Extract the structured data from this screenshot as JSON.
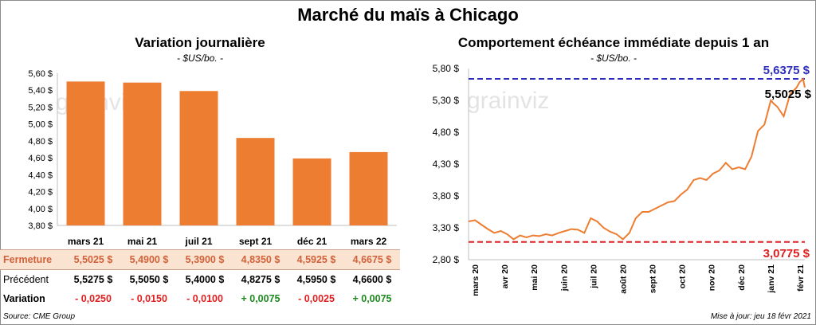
{
  "header": {
    "title": "Marché du maïs à Chicago"
  },
  "left_panel": {
    "title": "Variation  journalière",
    "unit": "- $US/bo. -"
  },
  "right_panel": {
    "title": "Comportement  échéance immédiate depuis 1 an",
    "unit": "- $US/bo. -"
  },
  "watermark": "grainviz",
  "table": {
    "rows": [
      {
        "label": "Fermeture",
        "values": [
          "5,5025  $",
          "5,4900  $",
          "5,3900  $",
          "4,8350  $",
          "4,5925  $",
          "4,6675  $"
        ]
      },
      {
        "label": "Précédent",
        "values": [
          "5,5275  $",
          "5,5050  $",
          "5,4000  $",
          "4,8275  $",
          "4,5950  $",
          "4,6600  $"
        ]
      },
      {
        "label": "Variation",
        "values": [
          "- 0,0250",
          "- 0,0150",
          "- 0,0100",
          "+ 0,0075",
          "- 0,0025",
          "+ 0,0075"
        ]
      }
    ]
  },
  "footer": {
    "source": "Source: CME Group",
    "updated": "Mise à jour: jeu 18 févr 2021"
  },
  "colors": {
    "bar": "#ed7d31",
    "line": "#ed7d31",
    "high": "#2e2ebf",
    "low": "#e02020",
    "negative": "#e02020",
    "positive": "#1e8a1e"
  },
  "chart_data": [
    {
      "type": "bar",
      "title": "Variation  journalière",
      "ylabel": "- $US/bo. -",
      "categories": [
        "mars 21",
        "mai 21",
        "juil 21",
        "sept 21",
        "déc 21",
        "mars 22"
      ],
      "values": [
        5.5025,
        5.49,
        5.39,
        4.835,
        4.5925,
        4.6675
      ],
      "ylim": [
        3.8,
        5.6
      ],
      "yticks": [
        "3,80 $",
        "4,00 $",
        "4,20 $",
        "4,40 $",
        "4,60 $",
        "4,80 $",
        "5,00 $",
        "5,20 $",
        "5,40 $",
        "5,60 $"
      ],
      "grid": false
    },
    {
      "type": "line",
      "title": "Comportement  échéance immédiate depuis 1 an",
      "ylabel": "- $US/bo. -",
      "ylim": [
        2.8,
        5.8
      ],
      "yticks": [
        "2,80 $",
        "3,30 $",
        "3,80 $",
        "4,30 $",
        "4,80 $",
        "5,30 $",
        "5,80 $"
      ],
      "xticks": [
        "mars 20",
        "avr 20",
        "mai 20",
        "juin 20",
        "juil 20",
        "août 20",
        "sept 20",
        "oct 20",
        "nov 20",
        "déc 20",
        "janv 21",
        "févr 21"
      ],
      "x": [
        "2020-02-18",
        "2020-02-25",
        "2020-03-03",
        "2020-03-10",
        "2020-03-17",
        "2020-03-24",
        "2020-03-31",
        "2020-04-07",
        "2020-04-14",
        "2020-04-21",
        "2020-04-28",
        "2020-05-05",
        "2020-05-12",
        "2020-05-19",
        "2020-05-26",
        "2020-06-02",
        "2020-06-09",
        "2020-06-16",
        "2020-06-23",
        "2020-06-30",
        "2020-07-07",
        "2020-07-14",
        "2020-07-21",
        "2020-07-28",
        "2020-08-04",
        "2020-08-11",
        "2020-08-18",
        "2020-08-25",
        "2020-09-01",
        "2020-09-08",
        "2020-09-15",
        "2020-09-22",
        "2020-09-29",
        "2020-10-06",
        "2020-10-13",
        "2020-10-20",
        "2020-10-27",
        "2020-11-03",
        "2020-11-10",
        "2020-11-17",
        "2020-11-24",
        "2020-12-01",
        "2020-12-08",
        "2020-12-15",
        "2020-12-22",
        "2020-12-29",
        "2021-01-05",
        "2021-01-12",
        "2021-01-15",
        "2021-01-19",
        "2021-01-26",
        "2021-02-02",
        "2021-02-09",
        "2021-02-12",
        "2021-02-16",
        "2021-02-18"
      ],
      "series": [
        {
          "values": [
            3.4,
            3.42,
            3.35,
            3.28,
            3.22,
            3.25,
            3.2,
            3.12,
            3.18,
            3.15,
            3.18,
            3.17,
            3.2,
            3.18,
            3.22,
            3.25,
            3.28,
            3.27,
            3.22,
            3.45,
            3.4,
            3.3,
            3.24,
            3.2,
            3.12,
            3.22,
            3.45,
            3.55,
            3.55,
            3.6,
            3.65,
            3.7,
            3.72,
            3.82,
            3.9,
            4.05,
            4.08,
            4.05,
            4.15,
            4.2,
            4.32,
            4.22,
            4.25,
            4.22,
            4.42,
            4.82,
            4.92,
            5.3,
            5.25,
            5.2,
            5.05,
            5.4,
            5.5,
            5.58,
            5.6375,
            5.5025
          ]
        }
      ],
      "reference_lines": [
        {
          "value": 5.6375,
          "label": "5,6375 $",
          "color": "#2e2ebf"
        },
        {
          "value": 3.0775,
          "label": "3,0775 $",
          "color": "#e02020"
        }
      ],
      "last_label": "5,5025 $",
      "grid": false
    }
  ]
}
